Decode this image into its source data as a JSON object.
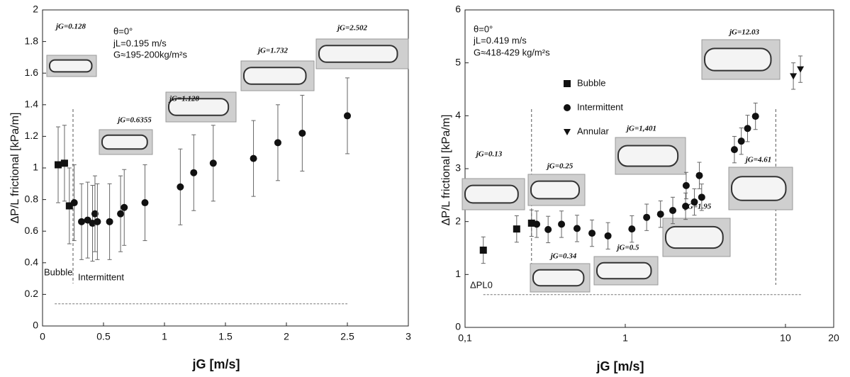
{
  "chart_data": [
    {
      "type": "scatter",
      "x_label": "jG [m/s]",
      "y_label": "ΔP/L frictional [kPa/m]",
      "xlim": [
        0,
        3
      ],
      "xticks": [
        0,
        0.5,
        1,
        1.5,
        2,
        2.5,
        3
      ],
      "ylim": [
        0,
        2
      ],
      "yticks": [
        0,
        0.2,
        0.4,
        0.6,
        0.8,
        1,
        1.2,
        1.4,
        1.6,
        1.8,
        2
      ],
      "log_x": false,
      "legend": false,
      "annotations": [
        "θ=0°",
        "jL=0.195 m/s",
        "G≈195-200kg/m²s"
      ],
      "photo_labels": [
        "jG=0.128",
        "jG=0.6355",
        "jG=1.128",
        "jG=1.732",
        "jG=2.502"
      ],
      "vlines": [
        0.25
      ],
      "hlines": [
        {
          "y": 0.14,
          "x": [
            0.1,
            2.5
          ]
        }
      ],
      "series": [
        {
          "name": "Bubble",
          "marker": "square",
          "color": "#111",
          "x": [
            0.128,
            0.18,
            0.22
          ],
          "values": [
            1.02,
            1.03,
            0.76
          ],
          "errors": [
            0.24,
            0.24,
            0.24
          ]
        },
        {
          "name": "Intermittent",
          "marker": "circle",
          "color": "#111",
          "x": [
            0.26,
            0.32,
            0.37,
            0.41,
            0.43,
            0.45,
            0.55,
            0.64,
            0.67,
            0.84,
            1.13,
            1.24,
            1.4,
            1.73,
            1.93,
            2.13,
            2.5
          ],
          "values": [
            0.78,
            0.66,
            0.67,
            0.65,
            0.71,
            0.66,
            0.66,
            0.71,
            0.75,
            0.78,
            0.88,
            0.97,
            1.03,
            1.06,
            1.16,
            1.22,
            1.33
          ],
          "errors": [
            0.24,
            0.24,
            0.24,
            0.24,
            0.24,
            0.24,
            0.24,
            0.24,
            0.24,
            0.24,
            0.24,
            0.24,
            0.24,
            0.24,
            0.24,
            0.24,
            0.24
          ]
        }
      ]
    },
    {
      "type": "scatter",
      "x_label": "jG [m/s]",
      "y_label": "ΔP/L frictional [kPa/m]",
      "xlim": [
        0.1,
        20
      ],
      "xticks": [
        {
          "value": 0.1,
          "label": "0,1"
        },
        1,
        10,
        20
      ],
      "ylim": [
        0,
        6
      ],
      "yticks": [
        0,
        1,
        2,
        3,
        4,
        5,
        6
      ],
      "log_x": true,
      "legend": true,
      "annotations": [
        "θ=0°",
        "jL=0.419 m/s",
        "G≈418-429 kg/m²s",
        "ΔPL0"
      ],
      "photo_labels": [
        "jG=0.13",
        "jG=0.25",
        "jG=0.34",
        "jG=0.5",
        "jG=1,401",
        "jG=1.95",
        "jG=4.61",
        "jG=12.03"
      ],
      "vlines": [
        0.26,
        8.7
      ],
      "hlines": [
        {
          "y": 0.62,
          "x": [
            0.13,
            12.5
          ]
        }
      ],
      "series": [
        {
          "name": "Bubble",
          "marker": "square",
          "color": "#111",
          "x": [
            0.13,
            0.21,
            0.26
          ],
          "values": [
            1.46,
            1.86,
            1.97
          ],
          "errors": [
            0.25,
            0.25,
            0.25
          ]
        },
        {
          "name": "Intermittent",
          "marker": "circle",
          "color": "#111",
          "x": [
            0.28,
            0.33,
            0.4,
            0.5,
            0.62,
            0.78,
            1.1,
            1.36,
            1.66,
            1.98,
            2.38,
            2.7,
            3.0,
            2.4,
            2.9,
            4.8,
            5.3,
            5.8,
            6.5
          ],
          "values": [
            1.95,
            1.85,
            1.95,
            1.87,
            1.78,
            1.73,
            1.86,
            2.08,
            2.14,
            2.21,
            2.29,
            2.37,
            2.46,
            2.68,
            2.87,
            3.36,
            3.52,
            3.76,
            3.99
          ],
          "errors": [
            0.25,
            0.25,
            0.25,
            0.25,
            0.25,
            0.25,
            0.25,
            0.25,
            0.25,
            0.25,
            0.25,
            0.25,
            0.25,
            0.25,
            0.25,
            0.25,
            0.25,
            0.25,
            0.25
          ]
        },
        {
          "name": "Annular",
          "marker": "triangle-down",
          "color": "#111",
          "x": [
            11.2,
            12.4
          ],
          "values": [
            4.75,
            4.88
          ],
          "errors": [
            0.25,
            0.25
          ]
        }
      ]
    }
  ]
}
